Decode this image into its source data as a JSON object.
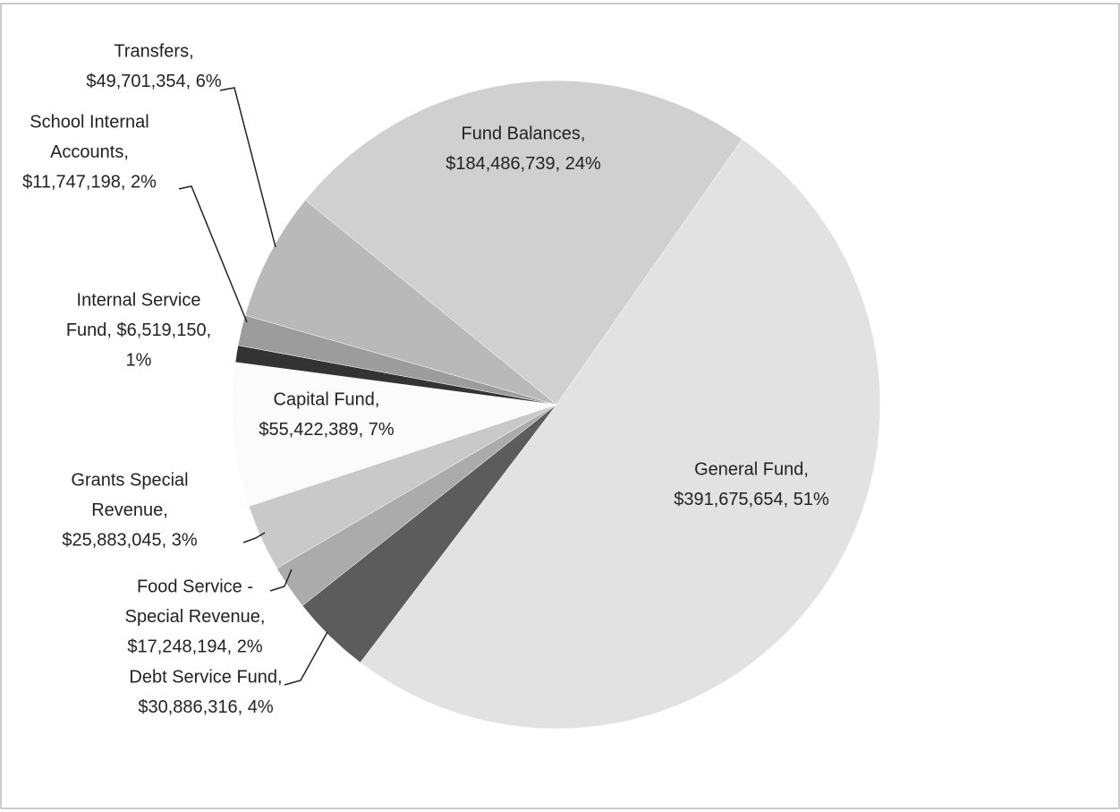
{
  "chart_data": {
    "type": "pie",
    "values": [
      391675654,
      30886316,
      17248194,
      25883045,
      55422389,
      6519150,
      11747198,
      49701354,
      184486739
    ],
    "value_labels": [
      [
        "General Fund,",
        "$391,675,654, 51%"
      ],
      [
        "Debt Service Fund,",
        "$30,886,316, 4%"
      ],
      [
        "Food Service -",
        "Special Revenue,",
        "$17,248,194, 2%"
      ],
      [
        "Grants Special",
        "Revenue,",
        "$25,883,045, 3%"
      ],
      [
        "Capital Fund,",
        "$55,422,389, 7%"
      ],
      [
        "Internal Service",
        "Fund, $6,519,150,",
        "1%"
      ],
      [
        "School Internal",
        "Accounts,",
        "$11,747,198, 2%"
      ],
      [
        "Transfers,",
        "$49,701,354, 6%"
      ],
      [
        "Fund Balances,",
        "$184,486,739, 24%"
      ]
    ],
    "colors": [
      "#e2e2e2",
      "#5c5c5c",
      "#ababab",
      "#c9c9c9",
      "#fbfbfb",
      "#333333",
      "#9c9c9c",
      "#b9b9b9",
      "#d0d0d0"
    ]
  }
}
